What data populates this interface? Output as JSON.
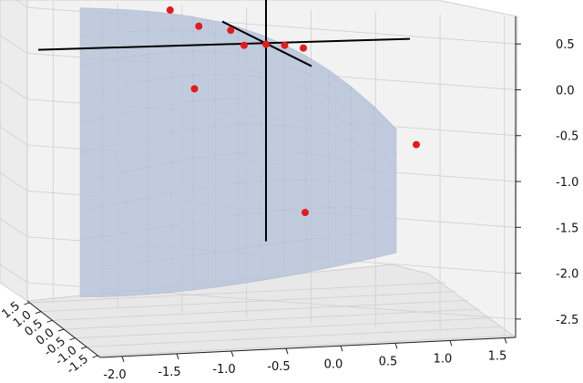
{
  "chart_data": {
    "type": "scatter",
    "title": "",
    "xlabel": "",
    "ylabel": "",
    "zlabel": "",
    "x_ticks": [
      "-2.0",
      "-1.5",
      "-1.0",
      "-0.5",
      "0.0",
      "0.5",
      "1.0",
      "1.5"
    ],
    "y_ticks": [
      "-1.5",
      "-1.0",
      "-0.5",
      "0.0",
      "0.5",
      "1.0",
      "1.5"
    ],
    "z_ticks": [
      "0.5",
      "0.0",
      "-0.5",
      "-1.0",
      "-1.5",
      "-2.0",
      "-2.5"
    ],
    "xlim": [
      -2.2,
      1.6
    ],
    "ylim": [
      -1.6,
      1.6
    ],
    "zlim": [
      -2.7,
      0.8
    ],
    "grid": true,
    "surface_color": "#b7c4da",
    "point_color": "#e41a1c",
    "cross_color": "#000000",
    "points": [
      {
        "x": -1.05,
        "y": 0.85,
        "z": 0.55
      },
      {
        "x": -0.85,
        "y": 0.55,
        "z": 0.42
      },
      {
        "x": -0.6,
        "y": 0.35,
        "z": 0.4
      },
      {
        "x": -0.55,
        "y": 0.0,
        "z": 0.3
      },
      {
        "x": -0.35,
        "y": 0.0,
        "z": 0.3
      },
      {
        "x": -0.2,
        "y": -0.1,
        "z": 0.3
      },
      {
        "x": -0.05,
        "y": -0.2,
        "z": 0.28
      },
      {
        "x": -0.9,
        "y": 0.5,
        "z": -0.25
      },
      {
        "x": 0.9,
        "y": -0.6,
        "z": -0.75
      },
      {
        "x": -0.2,
        "y": -1.0,
        "z": -1.35
      }
    ]
  }
}
